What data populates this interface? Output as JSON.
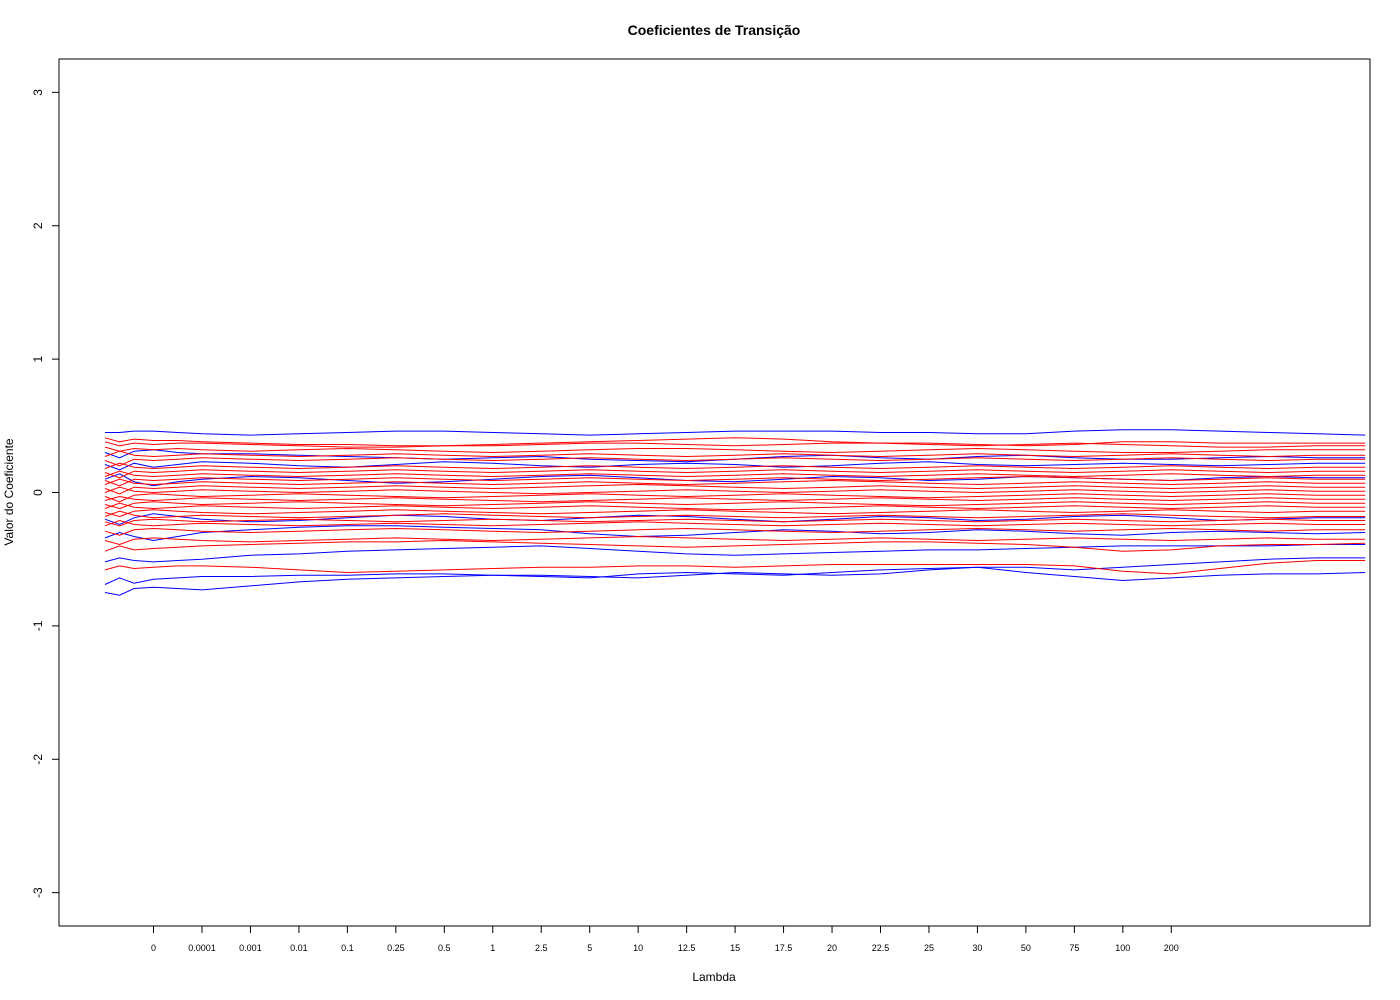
{
  "chart_data": {
    "type": "line",
    "title": "Coeficientes de Transição",
    "xlabel": "Lambda",
    "ylabel": "Valor do Coeficiente",
    "x_index_range": [
      -0.95,
      26.1
    ],
    "ylim": [
      -3.25,
      3.25
    ],
    "yticks": [
      -3,
      -2,
      -1,
      0,
      1,
      2,
      3
    ],
    "xtick_labels": [
      "0",
      "0.0001",
      "0.001",
      "0.01",
      "0.1",
      "0.25",
      "0.5",
      "1",
      "2.5",
      "5",
      "10",
      "12.5",
      "15",
      "17.5",
      "20",
      "22.5",
      "25",
      "30",
      "50",
      "75",
      "100",
      "200"
    ],
    "x_points": [
      0,
      0.3,
      0.6,
      1,
      1.5,
      2,
      3,
      4,
      5,
      6,
      7,
      8,
      9,
      10,
      11,
      12,
      13,
      14,
      15,
      16,
      17,
      18,
      19,
      20,
      21,
      22,
      23,
      24,
      25,
      26
    ],
    "colors": {
      "red_series": "#ff0000",
      "blue_series": "#0000ff"
    },
    "blue_series": [
      {
        "values": [
          0.45,
          0.45,
          0.46,
          0.46,
          0.45,
          0.44,
          0.43,
          0.44,
          0.45,
          0.46,
          0.46,
          0.45,
          0.44,
          0.43,
          0.44,
          0.45,
          0.46,
          0.46,
          0.46,
          0.45,
          0.45,
          0.44,
          0.44,
          0.46,
          0.47,
          0.47,
          0.46,
          0.45,
          0.44,
          0.43
        ]
      },
      {
        "values": [
          -0.75,
          -0.77,
          -0.72,
          -0.71,
          -0.72,
          -0.73,
          -0.7,
          -0.67,
          -0.65,
          -0.64,
          -0.63,
          -0.62,
          -0.62,
          -0.63,
          -0.64,
          -0.62,
          -0.6,
          -0.61,
          -0.62,
          -0.61,
          -0.58,
          -0.56,
          -0.6,
          -0.63,
          -0.66,
          -0.64,
          -0.62,
          -0.61,
          -0.61,
          -0.6
        ]
      },
      {
        "values": [
          -0.69,
          -0.64,
          -0.68,
          -0.65,
          -0.64,
          -0.63,
          -0.63,
          -0.62,
          -0.62,
          -0.61,
          -0.61,
          -0.62,
          -0.63,
          -0.64,
          -0.61,
          -0.6,
          -0.61,
          -0.62,
          -0.6,
          -0.58,
          -0.57,
          -0.56,
          -0.56,
          -0.58,
          -0.56,
          -0.54,
          -0.52,
          -0.5,
          -0.49,
          -0.49
        ]
      },
      {
        "values": [
          -0.52,
          -0.49,
          -0.51,
          -0.52,
          -0.51,
          -0.5,
          -0.47,
          -0.46,
          -0.44,
          -0.43,
          -0.42,
          -0.41,
          -0.4,
          -0.42,
          -0.44,
          -0.46,
          -0.47,
          -0.46,
          -0.45,
          -0.44,
          -0.43,
          -0.43,
          -0.42,
          -0.41,
          -0.4,
          -0.4,
          -0.4,
          -0.4,
          -0.39,
          -0.39
        ]
      },
      {
        "values": [
          -0.34,
          -0.3,
          -0.33,
          -0.36,
          -0.33,
          -0.3,
          -0.28,
          -0.26,
          -0.25,
          -0.25,
          -0.26,
          -0.27,
          -0.28,
          -0.31,
          -0.33,
          -0.32,
          -0.3,
          -0.28,
          -0.29,
          -0.31,
          -0.3,
          -0.28,
          -0.29,
          -0.31,
          -0.32,
          -0.3,
          -0.29,
          -0.3,
          -0.31,
          -0.3
        ]
      },
      {
        "values": [
          0.3,
          0.26,
          0.31,
          0.32,
          0.3,
          0.29,
          0.29,
          0.28,
          0.27,
          0.26,
          0.25,
          0.26,
          0.27,
          0.25,
          0.24,
          0.23,
          0.25,
          0.27,
          0.28,
          0.26,
          0.25,
          0.27,
          0.28,
          0.26,
          0.25,
          0.25,
          0.26,
          0.27,
          0.26,
          0.26
        ]
      },
      {
        "values": [
          -0.2,
          -0.24,
          -0.19,
          -0.16,
          -0.18,
          -0.2,
          -0.22,
          -0.21,
          -0.19,
          -0.17,
          -0.18,
          -0.2,
          -0.21,
          -0.19,
          -0.17,
          -0.18,
          -0.2,
          -0.22,
          -0.2,
          -0.18,
          -0.19,
          -0.21,
          -0.2,
          -0.18,
          -0.17,
          -0.19,
          -0.21,
          -0.2,
          -0.19,
          -0.19
        ]
      },
      {
        "values": [
          0.1,
          0.14,
          0.08,
          0.05,
          0.08,
          0.1,
          0.12,
          0.11,
          0.09,
          0.07,
          0.08,
          0.1,
          0.12,
          0.13,
          0.11,
          0.09,
          0.08,
          0.1,
          0.12,
          0.11,
          0.09,
          0.1,
          0.12,
          0.11,
          0.1,
          0.09,
          0.11,
          0.12,
          0.11,
          0.11
        ]
      },
      {
        "values": [
          0.21,
          0.17,
          0.22,
          0.19,
          0.21,
          0.23,
          0.22,
          0.2,
          0.19,
          0.21,
          0.23,
          0.22,
          0.2,
          0.19,
          0.21,
          0.22,
          0.21,
          0.19,
          0.2,
          0.22,
          0.23,
          0.21,
          0.2,
          0.21,
          0.22,
          0.21,
          0.2,
          0.21,
          0.22,
          0.22
        ]
      }
    ],
    "red_series": [
      {
        "values": [
          0.41,
          0.38,
          0.4,
          0.39,
          0.39,
          0.38,
          0.37,
          0.36,
          0.36,
          0.35,
          0.35,
          0.36,
          0.37,
          0.38,
          0.39,
          0.4,
          0.41,
          0.4,
          0.38,
          0.37,
          0.37,
          0.36,
          0.35,
          0.36,
          0.38,
          0.38,
          0.37,
          0.37,
          0.37,
          0.37
        ]
      },
      {
        "values": [
          0.38,
          0.35,
          0.37,
          0.36,
          0.37,
          0.37,
          0.36,
          0.35,
          0.34,
          0.34,
          0.35,
          0.35,
          0.36,
          0.37,
          0.37,
          0.36,
          0.35,
          0.36,
          0.37,
          0.37,
          0.36,
          0.35,
          0.36,
          0.37,
          0.36,
          0.35,
          0.34,
          0.34,
          0.35,
          0.35
        ]
      },
      {
        "values": [
          0.34,
          0.31,
          0.33,
          0.32,
          0.33,
          0.32,
          0.31,
          0.32,
          0.33,
          0.32,
          0.31,
          0.3,
          0.31,
          0.32,
          0.33,
          0.33,
          0.32,
          0.31,
          0.3,
          0.31,
          0.32,
          0.33,
          0.32,
          0.31,
          0.3,
          0.3,
          0.31,
          0.32,
          0.32,
          0.32
        ]
      },
      {
        "values": [
          -0.44,
          -0.4,
          -0.43,
          -0.42,
          -0.41,
          -0.4,
          -0.39,
          -0.38,
          -0.37,
          -0.37,
          -0.36,
          -0.37,
          -0.38,
          -0.39,
          -0.4,
          -0.41,
          -0.4,
          -0.39,
          -0.38,
          -0.37,
          -0.37,
          -0.38,
          -0.39,
          -0.41,
          -0.44,
          -0.43,
          -0.4,
          -0.39,
          -0.39,
          -0.38
        ]
      },
      {
        "values": [
          -0.58,
          -0.55,
          -0.57,
          -0.56,
          -0.55,
          -0.55,
          -0.56,
          -0.58,
          -0.6,
          -0.59,
          -0.58,
          -0.57,
          -0.56,
          -0.56,
          -0.55,
          -0.55,
          -0.56,
          -0.55,
          -0.54,
          -0.54,
          -0.54,
          -0.54,
          -0.54,
          -0.55,
          -0.59,
          -0.61,
          -0.57,
          -0.53,
          -0.51,
          -0.51
        ]
      },
      {
        "values": [
          -0.36,
          -0.39,
          -0.35,
          -0.34,
          -0.35,
          -0.36,
          -0.37,
          -0.36,
          -0.35,
          -0.34,
          -0.35,
          -0.36,
          -0.35,
          -0.34,
          -0.33,
          -0.34,
          -0.35,
          -0.36,
          -0.35,
          -0.34,
          -0.35,
          -0.36,
          -0.35,
          -0.34,
          -0.35,
          -0.36,
          -0.35,
          -0.34,
          -0.35,
          -0.35
        ]
      },
      {
        "values": [
          -0.29,
          -0.32,
          -0.28,
          -0.27,
          -0.28,
          -0.29,
          -0.3,
          -0.29,
          -0.28,
          -0.27,
          -0.28,
          -0.29,
          -0.3,
          -0.29,
          -0.28,
          -0.27,
          -0.28,
          -0.29,
          -0.3,
          -0.29,
          -0.28,
          -0.27,
          -0.28,
          -0.29,
          -0.28,
          -0.27,
          -0.28,
          -0.29,
          -0.28,
          -0.28
        ]
      },
      {
        "values": [
          -0.25,
          -0.21,
          -0.24,
          -0.25,
          -0.24,
          -0.23,
          -0.24,
          -0.25,
          -0.24,
          -0.23,
          -0.24,
          -0.25,
          -0.24,
          -0.23,
          -0.22,
          -0.23,
          -0.24,
          -0.25,
          -0.24,
          -0.23,
          -0.24,
          -0.25,
          -0.24,
          -0.23,
          -0.24,
          -0.25,
          -0.24,
          -0.23,
          -0.24,
          -0.24
        ]
      },
      {
        "values": [
          -0.22,
          -0.25,
          -0.21,
          -0.2,
          -0.21,
          -0.22,
          -0.21,
          -0.2,
          -0.21,
          -0.22,
          -0.21,
          -0.2,
          -0.21,
          -0.22,
          -0.21,
          -0.2,
          -0.21,
          -0.22,
          -0.21,
          -0.2,
          -0.21,
          -0.22,
          -0.21,
          -0.2,
          -0.21,
          -0.22,
          -0.21,
          -0.2,
          -0.21,
          -0.21
        ]
      },
      {
        "values": [
          -0.18,
          -0.14,
          -0.17,
          -0.19,
          -0.18,
          -0.17,
          -0.18,
          -0.19,
          -0.18,
          -0.17,
          -0.16,
          -0.17,
          -0.18,
          -0.19,
          -0.18,
          -0.17,
          -0.18,
          -0.19,
          -0.18,
          -0.17,
          -0.18,
          -0.19,
          -0.18,
          -0.17,
          -0.16,
          -0.17,
          -0.18,
          -0.19,
          -0.18,
          -0.18
        ]
      },
      {
        "values": [
          -0.15,
          -0.18,
          -0.14,
          -0.13,
          -0.14,
          -0.15,
          -0.16,
          -0.15,
          -0.14,
          -0.13,
          -0.14,
          -0.15,
          -0.16,
          -0.15,
          -0.14,
          -0.13,
          -0.14,
          -0.15,
          -0.16,
          -0.15,
          -0.14,
          -0.13,
          -0.14,
          -0.15,
          -0.14,
          -0.13,
          -0.14,
          -0.15,
          -0.14,
          -0.14
        ]
      },
      {
        "values": [
          -0.12,
          -0.08,
          -0.11,
          -0.12,
          -0.11,
          -0.1,
          -0.11,
          -0.12,
          -0.11,
          -0.1,
          -0.11,
          -0.12,
          -0.11,
          -0.1,
          -0.11,
          -0.12,
          -0.13,
          -0.12,
          -0.11,
          -0.1,
          -0.11,
          -0.12,
          -0.11,
          -0.1,
          -0.11,
          -0.12,
          -0.11,
          -0.1,
          -0.11,
          -0.11
        ]
      },
      {
        "values": [
          -0.09,
          -0.12,
          -0.08,
          -0.07,
          -0.08,
          -0.09,
          -0.08,
          -0.07,
          -0.08,
          -0.09,
          -0.1,
          -0.09,
          -0.08,
          -0.07,
          -0.08,
          -0.09,
          -0.08,
          -0.07,
          -0.08,
          -0.09,
          -0.1,
          -0.09,
          -0.08,
          -0.07,
          -0.08,
          -0.09,
          -0.08,
          -0.07,
          -0.08,
          -0.08
        ]
      },
      {
        "values": [
          -0.06,
          -0.03,
          -0.05,
          -0.06,
          -0.05,
          -0.04,
          -0.05,
          -0.06,
          -0.05,
          -0.04,
          -0.05,
          -0.06,
          -0.07,
          -0.06,
          -0.05,
          -0.04,
          -0.05,
          -0.06,
          -0.05,
          -0.04,
          -0.05,
          -0.06,
          -0.05,
          -0.04,
          -0.05,
          -0.06,
          -0.05,
          -0.04,
          -0.05,
          -0.05
        ]
      },
      {
        "values": [
          -0.03,
          -0.07,
          -0.02,
          -0.01,
          -0.02,
          -0.03,
          -0.02,
          -0.01,
          -0.02,
          -0.03,
          -0.04,
          -0.03,
          -0.02,
          -0.01,
          -0.02,
          -0.03,
          -0.02,
          -0.01,
          -0.02,
          -0.03,
          -0.04,
          -0.03,
          -0.02,
          -0.01,
          -0.02,
          -0.03,
          -0.02,
          -0.01,
          -0.02,
          -0.02
        ]
      },
      {
        "values": [
          0.0,
          0.04,
          0.01,
          0.0,
          0.01,
          0.02,
          0.01,
          0.0,
          0.01,
          0.02,
          0.01,
          0.0,
          -0.01,
          0.0,
          0.01,
          0.02,
          0.01,
          0.0,
          0.01,
          0.02,
          0.01,
          0.0,
          0.01,
          0.02,
          0.01,
          0.0,
          0.01,
          0.02,
          0.01,
          0.01
        ]
      },
      {
        "values": [
          0.03,
          -0.01,
          0.04,
          0.03,
          0.04,
          0.05,
          0.04,
          0.03,
          0.04,
          0.05,
          0.04,
          0.03,
          0.04,
          0.05,
          0.06,
          0.05,
          0.04,
          0.03,
          0.04,
          0.05,
          0.04,
          0.03,
          0.04,
          0.05,
          0.04,
          0.03,
          0.04,
          0.05,
          0.04,
          0.04
        ]
      },
      {
        "values": [
          0.06,
          0.1,
          0.07,
          0.06,
          0.07,
          0.08,
          0.07,
          0.06,
          0.07,
          0.08,
          0.07,
          0.06,
          0.07,
          0.08,
          0.07,
          0.06,
          0.07,
          0.08,
          0.09,
          0.08,
          0.07,
          0.06,
          0.07,
          0.08,
          0.07,
          0.06,
          0.07,
          0.08,
          0.07,
          0.07
        ]
      },
      {
        "values": [
          0.09,
          0.05,
          0.1,
          0.09,
          0.1,
          0.11,
          0.1,
          0.09,
          0.1,
          0.11,
          0.1,
          0.09,
          0.1,
          0.11,
          0.1,
          0.09,
          0.1,
          0.11,
          0.1,
          0.09,
          0.1,
          0.11,
          0.12,
          0.11,
          0.1,
          0.09,
          0.1,
          0.11,
          0.1,
          0.1
        ]
      },
      {
        "values": [
          0.12,
          0.16,
          0.13,
          0.12,
          0.13,
          0.14,
          0.13,
          0.12,
          0.13,
          0.14,
          0.13,
          0.12,
          0.13,
          0.14,
          0.13,
          0.12,
          0.13,
          0.14,
          0.13,
          0.12,
          0.13,
          0.14,
          0.13,
          0.12,
          0.13,
          0.14,
          0.13,
          0.12,
          0.13,
          0.13
        ]
      },
      {
        "values": [
          0.15,
          0.11,
          0.16,
          0.15,
          0.16,
          0.17,
          0.16,
          0.15,
          0.16,
          0.17,
          0.16,
          0.15,
          0.16,
          0.17,
          0.16,
          0.15,
          0.16,
          0.17,
          0.16,
          0.15,
          0.16,
          0.17,
          0.16,
          0.15,
          0.16,
          0.17,
          0.16,
          0.15,
          0.16,
          0.16
        ]
      },
      {
        "values": [
          0.18,
          0.22,
          0.19,
          0.18,
          0.19,
          0.2,
          0.19,
          0.18,
          0.19,
          0.2,
          0.19,
          0.18,
          0.19,
          0.2,
          0.19,
          0.18,
          0.19,
          0.2,
          0.19,
          0.18,
          0.19,
          0.2,
          0.19,
          0.18,
          0.19,
          0.2,
          0.19,
          0.18,
          0.19,
          0.19
        ]
      },
      {
        "values": [
          0.24,
          0.2,
          0.25,
          0.24,
          0.25,
          0.26,
          0.25,
          0.24,
          0.25,
          0.26,
          0.25,
          0.24,
          0.25,
          0.26,
          0.25,
          0.24,
          0.25,
          0.26,
          0.25,
          0.24,
          0.25,
          0.26,
          0.25,
          0.24,
          0.25,
          0.26,
          0.25,
          0.24,
          0.25,
          0.25
        ]
      },
      {
        "values": [
          0.27,
          0.31,
          0.28,
          0.27,
          0.28,
          0.29,
          0.28,
          0.27,
          0.28,
          0.29,
          0.28,
          0.27,
          0.28,
          0.29,
          0.28,
          0.27,
          0.28,
          0.29,
          0.28,
          0.27,
          0.28,
          0.29,
          0.28,
          0.27,
          0.28,
          0.29,
          0.28,
          0.27,
          0.28,
          0.28
        ]
      }
    ]
  }
}
